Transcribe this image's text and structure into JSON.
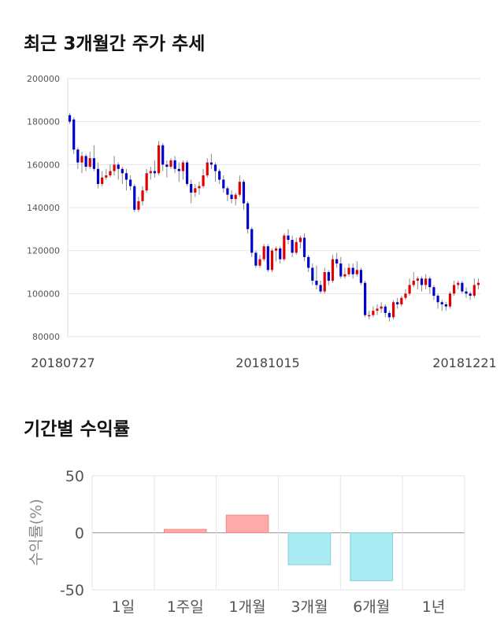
{
  "titles": {
    "price_trend": "최근 3개월간 주가 추세",
    "returns": "기간별 수익률"
  },
  "colors": {
    "up": "#e00000",
    "down": "#0000cc",
    "positive_bar": "#ffaaaa",
    "negative_bar": "#aaeaf2",
    "grid": "#e6e6e6"
  },
  "chart_data": [
    {
      "type": "candlestick",
      "title": "최근 3개월간 주가 추세",
      "ylim": [
        80000,
        200000
      ],
      "yticks": [
        "200000",
        "180000",
        "160000",
        "140000",
        "120000",
        "100000",
        "80000"
      ],
      "ytick_values": [
        200000,
        180000,
        160000,
        140000,
        120000,
        100000,
        80000
      ],
      "xtick_labels": [
        "20180727",
        "20181015",
        "20181221"
      ],
      "grid": true,
      "candles": [
        [
          183000,
          180000,
          184000,
          179000
        ],
        [
          181000,
          167000,
          182000,
          165000
        ],
        [
          167000,
          161000,
          168000,
          158000
        ],
        [
          161000,
          164000,
          166000,
          156000
        ],
        [
          164000,
          159000,
          165000,
          157000
        ],
        [
          159000,
          163000,
          166000,
          158000
        ],
        [
          163000,
          158000,
          169000,
          157000
        ],
        [
          158000,
          151000,
          161000,
          149000
        ],
        [
          151000,
          154000,
          157000,
          150000
        ],
        [
          154000,
          155000,
          158000,
          153000
        ],
        [
          155000,
          157000,
          160000,
          154000
        ],
        [
          157000,
          160000,
          164000,
          155000
        ],
        [
          160000,
          158000,
          161000,
          153000
        ],
        [
          158000,
          156000,
          159000,
          151000
        ],
        [
          156000,
          153000,
          158000,
          148000
        ],
        [
          153000,
          150000,
          155000,
          148000
        ],
        [
          150000,
          139000,
          151000,
          138000
        ],
        [
          139000,
          143000,
          145000,
          138000
        ],
        [
          143000,
          148000,
          150000,
          141000
        ],
        [
          148000,
          156000,
          158000,
          147000
        ],
        [
          156000,
          157000,
          159000,
          153000
        ],
        [
          157000,
          156000,
          162000,
          154000
        ],
        [
          156000,
          169000,
          171000,
          155000
        ],
        [
          169000,
          160000,
          170000,
          157000
        ],
        [
          160000,
          159000,
          162000,
          154000
        ],
        [
          159000,
          162000,
          163000,
          158000
        ],
        [
          162000,
          158000,
          164000,
          156000
        ],
        [
          158000,
          157000,
          161000,
          152000
        ],
        [
          157000,
          161000,
          162000,
          153000
        ],
        [
          161000,
          151000,
          162000,
          150000
        ],
        [
          151000,
          147000,
          153000,
          142000
        ],
        [
          147000,
          149000,
          151000,
          145000
        ],
        [
          149000,
          150000,
          152000,
          146000
        ],
        [
          150000,
          155000,
          158000,
          149000
        ],
        [
          155000,
          161000,
          163000,
          154000
        ],
        [
          161000,
          160000,
          165000,
          158000
        ],
        [
          160000,
          157000,
          161000,
          152000
        ],
        [
          157000,
          153000,
          158000,
          151000
        ],
        [
          153000,
          149000,
          155000,
          147000
        ],
        [
          149000,
          146000,
          150000,
          143000
        ],
        [
          146000,
          144000,
          148000,
          142000
        ],
        [
          144000,
          146000,
          147000,
          141000
        ],
        [
          146000,
          152000,
          155000,
          145000
        ],
        [
          152000,
          142000,
          153000,
          139000
        ],
        [
          142000,
          130000,
          143000,
          128000
        ],
        [
          130000,
          119000,
          131000,
          117000
        ],
        [
          119000,
          113000,
          120000,
          112000
        ],
        [
          113000,
          116000,
          118000,
          112000
        ],
        [
          116000,
          122000,
          123000,
          115000
        ],
        [
          122000,
          111000,
          123000,
          110000
        ],
        [
          111000,
          120000,
          121000,
          110000
        ],
        [
          120000,
          121000,
          122000,
          115000
        ],
        [
          121000,
          116000,
          122000,
          114000
        ],
        [
          116000,
          127000,
          128000,
          115000
        ],
        [
          127000,
          125000,
          130000,
          123000
        ],
        [
          125000,
          119000,
          127000,
          117000
        ],
        [
          119000,
          124000,
          126000,
          118000
        ],
        [
          124000,
          126000,
          127000,
          121000
        ],
        [
          126000,
          117000,
          128000,
          115000
        ],
        [
          117000,
          112000,
          118000,
          110000
        ],
        [
          112000,
          106000,
          114000,
          104000
        ],
        [
          106000,
          104000,
          113000,
          102000
        ],
        [
          104000,
          101000,
          106000,
          100000
        ],
        [
          101000,
          110000,
          112000,
          100000
        ],
        [
          110000,
          106000,
          111000,
          104000
        ],
        [
          106000,
          116000,
          118000,
          105000
        ],
        [
          116000,
          114000,
          119000,
          112000
        ],
        [
          114000,
          108000,
          117000,
          107000
        ],
        [
          108000,
          109000,
          112000,
          107000
        ],
        [
          109000,
          112000,
          114000,
          108000
        ],
        [
          112000,
          109000,
          114000,
          107000
        ],
        [
          109000,
          111000,
          115000,
          108000
        ],
        [
          111000,
          105000,
          112000,
          104000
        ],
        [
          105000,
          90000,
          106000,
          89000
        ],
        [
          90000,
          90000,
          92000,
          88000
        ],
        [
          90000,
          92000,
          94000,
          89000
        ],
        [
          92000,
          93000,
          95000,
          90000
        ],
        [
          93000,
          94000,
          96000,
          91000
        ],
        [
          94000,
          91000,
          95000,
          89000
        ],
        [
          91000,
          89000,
          92000,
          87000
        ],
        [
          89000,
          96000,
          97000,
          88000
        ],
        [
          96000,
          95000,
          98000,
          93000
        ],
        [
          95000,
          98000,
          99000,
          94000
        ],
        [
          98000,
          100000,
          102000,
          97000
        ],
        [
          100000,
          104000,
          107000,
          99000
        ],
        [
          104000,
          106000,
          110000,
          103000
        ],
        [
          106000,
          107000,
          108000,
          102000
        ],
        [
          107000,
          104000,
          108000,
          101000
        ],
        [
          104000,
          107000,
          109000,
          102000
        ],
        [
          107000,
          103000,
          108000,
          100000
        ],
        [
          103000,
          99000,
          104000,
          97000
        ],
        [
          99000,
          96000,
          100000,
          93000
        ],
        [
          96000,
          95000,
          97000,
          92000
        ],
        [
          95000,
          94000,
          96000,
          92000
        ],
        [
          94000,
          100000,
          101000,
          93000
        ],
        [
          100000,
          104000,
          106000,
          99000
        ],
        [
          104000,
          105000,
          106000,
          102000
        ],
        [
          105000,
          101000,
          106000,
          100000
        ],
        [
          101000,
          100000,
          103000,
          98000
        ],
        [
          100000,
          99000,
          101000,
          97000
        ],
        [
          99000,
          104000,
          107000,
          98000
        ],
        [
          104000,
          105000,
          107000,
          102000
        ]
      ]
    },
    {
      "type": "bar",
      "title": "기간별 수익률",
      "ylabel": "수익률(%)",
      "ylim": [
        -50,
        50
      ],
      "yticks": [
        "50",
        "0",
        "-50"
      ],
      "ytick_values": [
        50,
        0,
        -50
      ],
      "categories": [
        "1일",
        "1주일",
        "1개월",
        "3개월",
        "6개월",
        "1년"
      ],
      "values": [
        0,
        3,
        15.5,
        -28,
        -42,
        0
      ],
      "grid": true
    }
  ]
}
